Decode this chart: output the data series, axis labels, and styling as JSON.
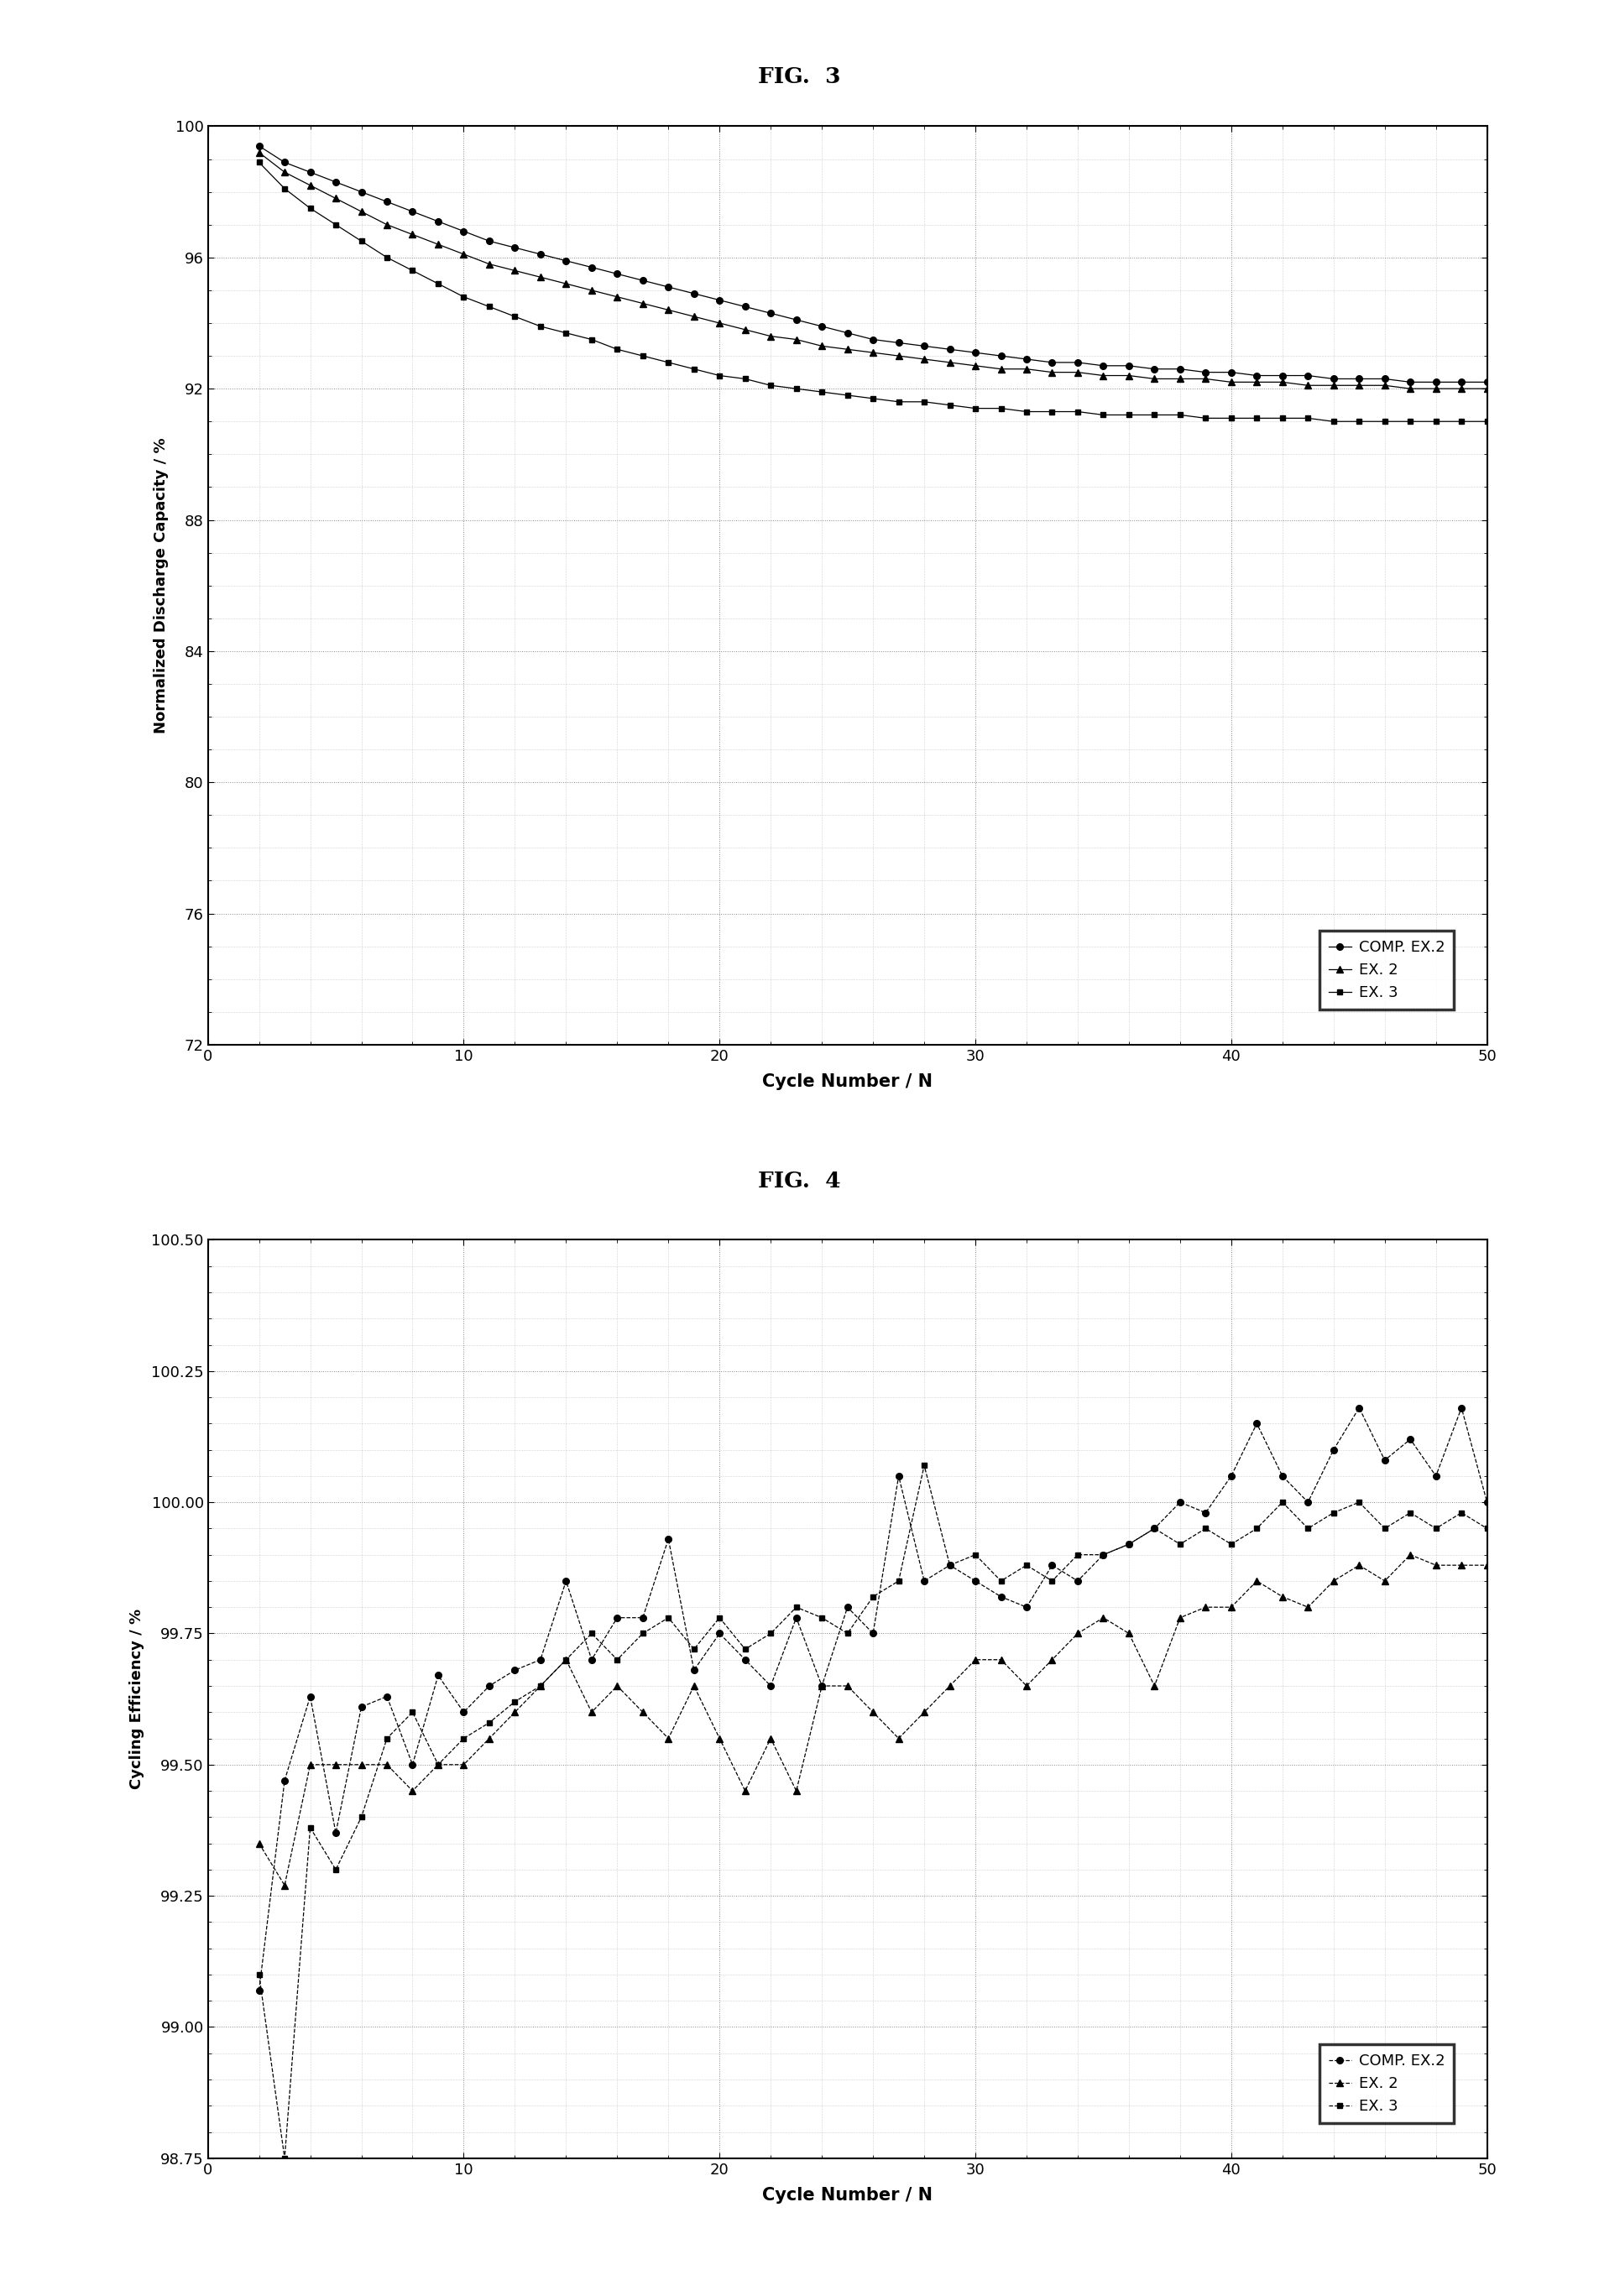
{
  "fig3_title": "FIG.  3",
  "fig4_title": "FIG.  4",
  "fig3_xlabel": "Cycle Number / N",
  "fig3_ylabel": "Normalized Discharge Capacity / %",
  "fig4_xlabel": "Cycle Number / N",
  "fig4_ylabel": "Cycling Efficiency / %",
  "fig3_ylim": [
    72,
    100
  ],
  "fig3_xlim": [
    0,
    50
  ],
  "fig4_ylim": [
    98.75,
    100.5
  ],
  "fig4_xlim": [
    0,
    50
  ],
  "fig3_yticks": [
    72,
    76,
    80,
    84,
    88,
    92,
    96,
    100
  ],
  "fig3_xticks": [
    0,
    10,
    20,
    30,
    40,
    50
  ],
  "fig4_yticks": [
    98.75,
    99.0,
    99.25,
    99.5,
    99.75,
    100.0,
    100.25,
    100.5
  ],
  "fig4_xticks": [
    0,
    10,
    20,
    30,
    40,
    50
  ],
  "legend_labels": [
    "COMP. EX.2",
    "EX. 2",
    "EX. 3"
  ],
  "background_color": "#ffffff",
  "fig3_comp_ex2_x": [
    2,
    3,
    4,
    5,
    6,
    7,
    8,
    9,
    10,
    11,
    12,
    13,
    14,
    15,
    16,
    17,
    18,
    19,
    20,
    21,
    22,
    23,
    24,
    25,
    26,
    27,
    28,
    29,
    30,
    31,
    32,
    33,
    34,
    35,
    36,
    37,
    38,
    39,
    40,
    41,
    42,
    43,
    44,
    45,
    46,
    47,
    48,
    49,
    50
  ],
  "fig3_comp_ex2_y": [
    99.4,
    98.9,
    98.6,
    98.3,
    98.0,
    97.7,
    97.4,
    97.1,
    96.8,
    96.5,
    96.3,
    96.1,
    95.9,
    95.7,
    95.5,
    95.3,
    95.1,
    94.9,
    94.7,
    94.5,
    94.3,
    94.1,
    93.9,
    93.7,
    93.5,
    93.4,
    93.3,
    93.2,
    93.1,
    93.0,
    92.9,
    92.8,
    92.8,
    92.7,
    92.7,
    92.6,
    92.6,
    92.5,
    92.5,
    92.4,
    92.4,
    92.4,
    92.3,
    92.3,
    92.3,
    92.2,
    92.2,
    92.2,
    92.2
  ],
  "fig3_ex2_x": [
    2,
    3,
    4,
    5,
    6,
    7,
    8,
    9,
    10,
    11,
    12,
    13,
    14,
    15,
    16,
    17,
    18,
    19,
    20,
    21,
    22,
    23,
    24,
    25,
    26,
    27,
    28,
    29,
    30,
    31,
    32,
    33,
    34,
    35,
    36,
    37,
    38,
    39,
    40,
    41,
    42,
    43,
    44,
    45,
    46,
    47,
    48,
    49,
    50
  ],
  "fig3_ex2_y": [
    99.2,
    98.6,
    98.2,
    97.8,
    97.4,
    97.0,
    96.7,
    96.4,
    96.1,
    95.8,
    95.6,
    95.4,
    95.2,
    95.0,
    94.8,
    94.6,
    94.4,
    94.2,
    94.0,
    93.8,
    93.6,
    93.5,
    93.3,
    93.2,
    93.1,
    93.0,
    92.9,
    92.8,
    92.7,
    92.6,
    92.6,
    92.5,
    92.5,
    92.4,
    92.4,
    92.3,
    92.3,
    92.3,
    92.2,
    92.2,
    92.2,
    92.1,
    92.1,
    92.1,
    92.1,
    92.0,
    92.0,
    92.0,
    92.0
  ],
  "fig3_ex3_x": [
    2,
    3,
    4,
    5,
    6,
    7,
    8,
    9,
    10,
    11,
    12,
    13,
    14,
    15,
    16,
    17,
    18,
    19,
    20,
    21,
    22,
    23,
    24,
    25,
    26,
    27,
    28,
    29,
    30,
    31,
    32,
    33,
    34,
    35,
    36,
    37,
    38,
    39,
    40,
    41,
    42,
    43,
    44,
    45,
    46,
    47,
    48,
    49,
    50
  ],
  "fig3_ex3_y": [
    98.9,
    98.1,
    97.5,
    97.0,
    96.5,
    96.0,
    95.6,
    95.2,
    94.8,
    94.5,
    94.2,
    93.9,
    93.7,
    93.5,
    93.2,
    93.0,
    92.8,
    92.6,
    92.4,
    92.3,
    92.1,
    92.0,
    91.9,
    91.8,
    91.7,
    91.6,
    91.6,
    91.5,
    91.4,
    91.4,
    91.3,
    91.3,
    91.3,
    91.2,
    91.2,
    91.2,
    91.2,
    91.1,
    91.1,
    91.1,
    91.1,
    91.1,
    91.0,
    91.0,
    91.0,
    91.0,
    91.0,
    91.0,
    91.0
  ],
  "fig4_comp_ex2_x": [
    2,
    3,
    4,
    5,
    6,
    7,
    8,
    9,
    10,
    11,
    12,
    13,
    14,
    15,
    16,
    17,
    18,
    19,
    20,
    21,
    22,
    23,
    24,
    25,
    26,
    27,
    28,
    29,
    30,
    31,
    32,
    33,
    34,
    35,
    36,
    37,
    38,
    39,
    40,
    41,
    42,
    43,
    44,
    45,
    46,
    47,
    48,
    49,
    50
  ],
  "fig4_comp_ex2_y": [
    99.07,
    99.47,
    99.63,
    99.37,
    99.61,
    99.63,
    99.5,
    99.67,
    99.6,
    99.65,
    99.68,
    99.7,
    99.85,
    99.7,
    99.78,
    99.78,
    99.93,
    99.68,
    99.75,
    99.7,
    99.65,
    99.78,
    99.65,
    99.8,
    99.75,
    100.05,
    99.85,
    99.88,
    99.85,
    99.82,
    99.8,
    99.88,
    99.85,
    99.9,
    99.92,
    99.95,
    100.0,
    99.98,
    100.05,
    100.15,
    100.05,
    100.0,
    100.1,
    100.18,
    100.08,
    100.12,
    100.05,
    100.18,
    100.0
  ],
  "fig4_ex2_x": [
    2,
    3,
    4,
    5,
    6,
    7,
    8,
    9,
    10,
    11,
    12,
    13,
    14,
    15,
    16,
    17,
    18,
    19,
    20,
    21,
    22,
    23,
    24,
    25,
    26,
    27,
    28,
    29,
    30,
    31,
    32,
    33,
    34,
    35,
    36,
    37,
    38,
    39,
    40,
    41,
    42,
    43,
    44,
    45,
    46,
    47,
    48,
    49,
    50
  ],
  "fig4_ex2_y": [
    99.35,
    99.27,
    99.5,
    99.5,
    99.5,
    99.5,
    99.45,
    99.5,
    99.5,
    99.55,
    99.6,
    99.65,
    99.7,
    99.6,
    99.65,
    99.6,
    99.55,
    99.65,
    99.55,
    99.45,
    99.55,
    99.45,
    99.65,
    99.65,
    99.6,
    99.55,
    99.6,
    99.65,
    99.7,
    99.7,
    99.65,
    99.7,
    99.75,
    99.78,
    99.75,
    99.65,
    99.78,
    99.8,
    99.8,
    99.85,
    99.82,
    99.8,
    99.85,
    99.88,
    99.85,
    99.9,
    99.88,
    99.88,
    99.88
  ],
  "fig4_ex3_x": [
    2,
    3,
    4,
    5,
    6,
    7,
    8,
    9,
    10,
    11,
    12,
    13,
    14,
    15,
    16,
    17,
    18,
    19,
    20,
    21,
    22,
    23,
    24,
    25,
    26,
    27,
    28,
    29,
    30,
    31,
    32,
    33,
    34,
    35,
    36,
    37,
    38,
    39,
    40,
    41,
    42,
    43,
    44,
    45,
    46,
    47,
    48,
    49,
    50
  ],
  "fig4_ex3_y": [
    99.1,
    98.75,
    99.38,
    99.3,
    99.4,
    99.55,
    99.6,
    99.5,
    99.55,
    99.58,
    99.62,
    99.65,
    99.7,
    99.75,
    99.7,
    99.75,
    99.78,
    99.72,
    99.78,
    99.72,
    99.75,
    99.8,
    99.78,
    99.75,
    99.82,
    99.85,
    100.07,
    99.88,
    99.9,
    99.85,
    99.88,
    99.85,
    99.9,
    99.9,
    99.92,
    99.95,
    99.92,
    99.95,
    99.92,
    99.95,
    100.0,
    99.95,
    99.98,
    100.0,
    99.95,
    99.98,
    99.95,
    99.98,
    99.95
  ]
}
